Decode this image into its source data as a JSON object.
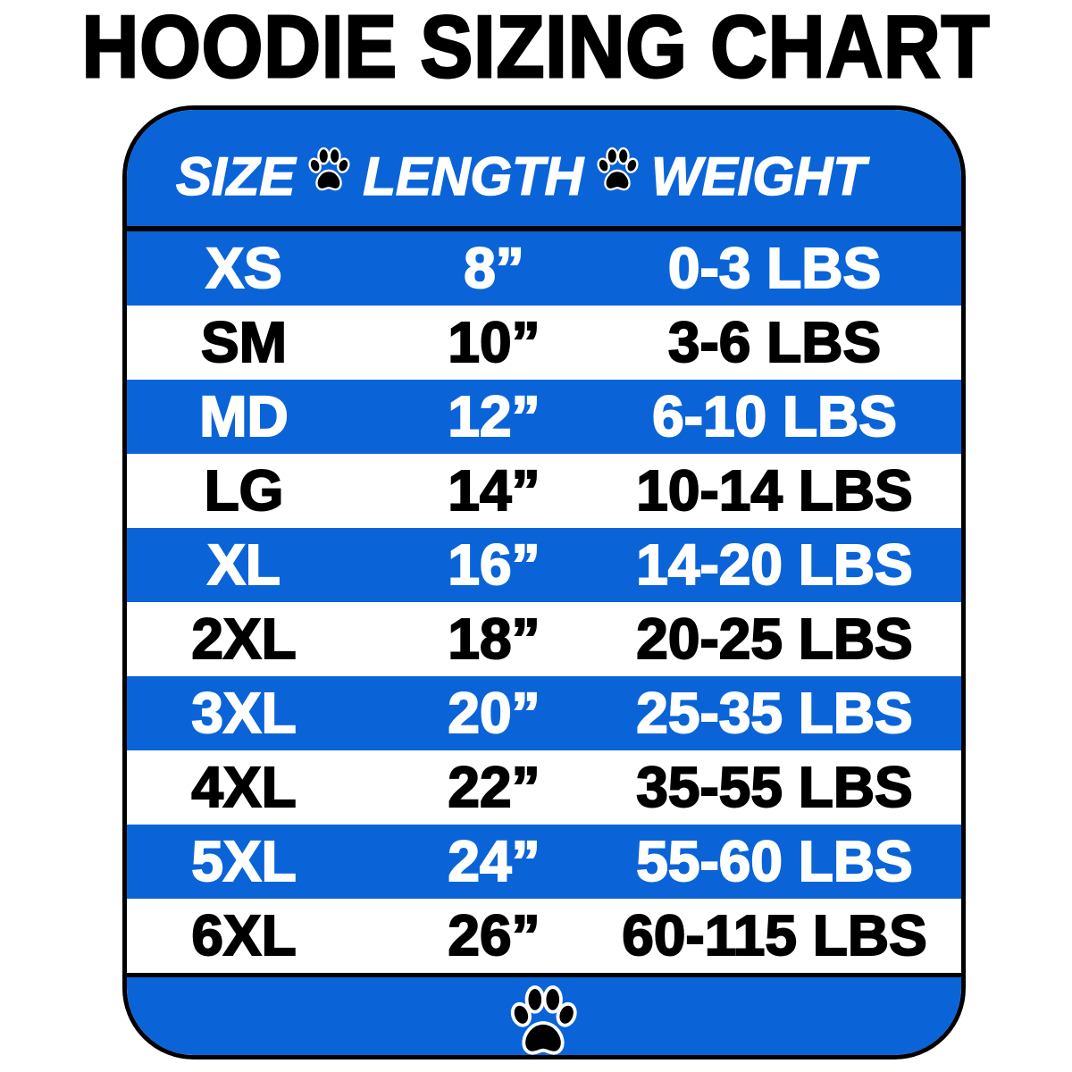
{
  "title": "HOODIE SIZING CHART",
  "colors": {
    "accent_blue": "#0a64d8",
    "text_dark": "#000000",
    "text_light": "#ffffff"
  },
  "table": {
    "headers": [
      "SIZE",
      "LENGTH",
      "WEIGHT"
    ],
    "separator_icon": "paw-print-icon",
    "rows": [
      {
        "size": "XS",
        "length": "8”",
        "weight": "0-3 LBS"
      },
      {
        "size": "SM",
        "length": "10”",
        "weight": "3-6 LBS"
      },
      {
        "size": "MD",
        "length": "12”",
        "weight": "6-10 LBS"
      },
      {
        "size": "LG",
        "length": "14”",
        "weight": "10-14 LBS"
      },
      {
        "size": "XL",
        "length": "16”",
        "weight": "14-20 LBS"
      },
      {
        "size": "2XL",
        "length": "18”",
        "weight": "20-25 LBS"
      },
      {
        "size": "3XL",
        "length": "20”",
        "weight": "25-35 LBS"
      },
      {
        "size": "4XL",
        "length": "22”",
        "weight": "35-55 LBS"
      },
      {
        "size": "5XL",
        "length": "24”",
        "weight": "55-60 LBS"
      },
      {
        "size": "6XL",
        "length": "26”",
        "weight": "60-115 LBS"
      }
    ]
  },
  "footer_icon": "paw-print-icon"
}
